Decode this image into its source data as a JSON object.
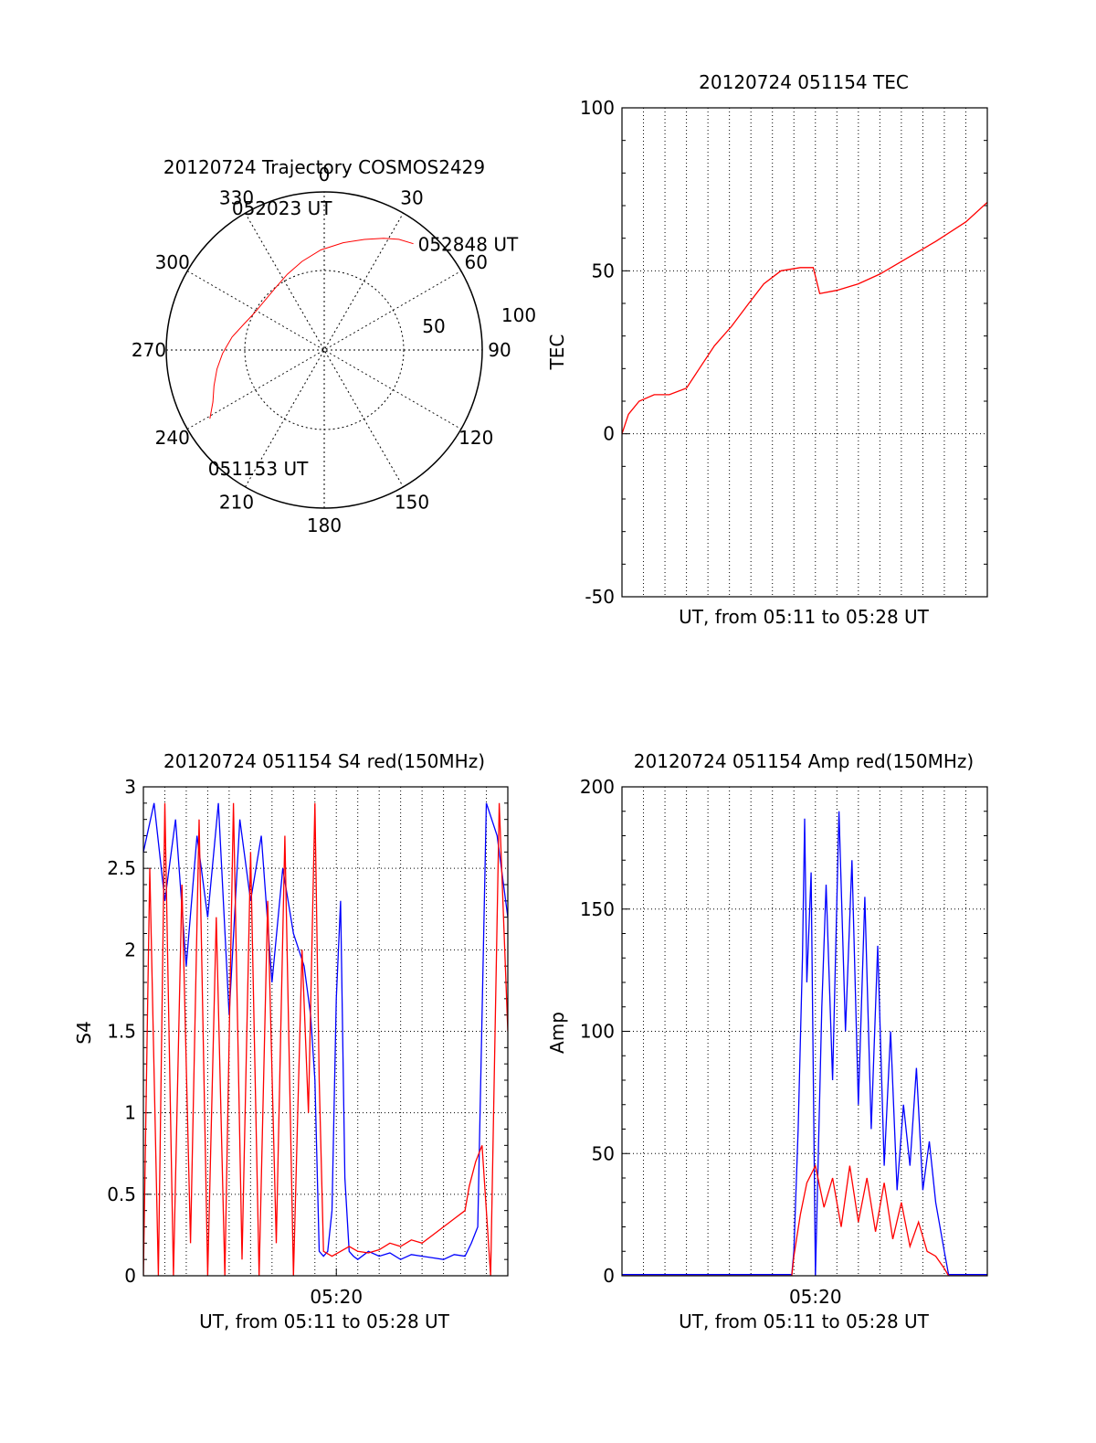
{
  "colors": {
    "red": "#ff0000",
    "blue": "#0000ff",
    "axis": "#000000",
    "grid": "#000000"
  },
  "chart_data": [
    {
      "type": "polar",
      "title": "20120724 Trajectory COSMOS2429",
      "azimuth_labels": [
        "0",
        "30",
        "60",
        "90",
        "120",
        "150",
        "180",
        "210",
        "240",
        "270",
        "300",
        "330"
      ],
      "radius_labels": [
        "50",
        "100"
      ],
      "track": {
        "azimuth_deg": [
          239,
          245,
          252,
          260,
          268,
          278,
          288,
          298,
          310,
          322,
          334,
          346,
          358,
          10,
          20,
          28,
          34,
          40
        ],
        "zenith_deg": [
          76,
          70,
          66,
          62,
          58,
          53,
          48,
          45,
          44,
          45,
          48,
          52,
          57,
          62,
          67,
          72,
          76,
          79
        ]
      },
      "annotations": [
        {
          "text": "052848 UT",
          "azimuth_deg": 40,
          "zenith_deg": 79
        },
        {
          "text": "052023 UT",
          "azimuth_deg": 330,
          "zenith_deg": 48
        },
        {
          "text": "051153 UT",
          "azimuth_deg": 239,
          "zenith_deg": 76
        }
      ]
    },
    {
      "type": "line",
      "title": "20120724 051154 TEC",
      "xlabel": "UT, from 05:11 to 05:28 UT",
      "ylabel": "TEC",
      "ylim": [
        -50,
        100
      ],
      "yticks": [
        "-50",
        "0",
        "50",
        "100"
      ],
      "xlim_min": [
        0,
        17
      ],
      "series": [
        {
          "color": "red",
          "x": [
            0,
            0.3,
            0.8,
            1.5,
            2.2,
            3.0,
            3.6,
            4.3,
            5.1,
            5.9,
            6.6,
            7.4,
            8.3,
            8.9,
            9.2,
            10.0,
            11.0,
            12.0,
            13.3,
            14.6,
            16.0,
            17.0
          ],
          "y": [
            0,
            6,
            10,
            12,
            12,
            14,
            20,
            27,
            33,
            40,
            46,
            50,
            51,
            51,
            43,
            44,
            46,
            49,
            54,
            59,
            65,
            71
          ]
        }
      ]
    },
    {
      "type": "line",
      "title": "20120724 051154 S4 red(150MHz)",
      "xlabel": "UT, from 05:11 to 05:28 UT",
      "ylabel": "S4",
      "ylim": [
        0,
        3
      ],
      "yticks": [
        "0",
        "0.5",
        "1",
        "1.5",
        "2",
        "2.5",
        "3"
      ],
      "xticks": [
        {
          "x": 9,
          "label": "05:20"
        }
      ],
      "xlim_min": [
        0,
        17
      ],
      "series": [
        {
          "color": "blue",
          "x": [
            0,
            0.5,
            1,
            1.5,
            2,
            2.5,
            3,
            3.5,
            4,
            4.5,
            5,
            5.5,
            6,
            6.5,
            7,
            7.5,
            7.8,
            8.0,
            8.2,
            8.4,
            8.6,
            8.8,
            9.0,
            9.2,
            9.4,
            9.6,
            9.8,
            10,
            10.5,
            11,
            11.5,
            12,
            12.5,
            13,
            13.5,
            14,
            14.5,
            15,
            15.3,
            15.6,
            16,
            16.5,
            17
          ],
          "y": [
            2.6,
            2.9,
            2.3,
            2.8,
            1.9,
            2.7,
            2.2,
            2.9,
            1.6,
            2.8,
            2.3,
            2.7,
            1.8,
            2.5,
            2.1,
            1.9,
            1.6,
            1.2,
            0.15,
            0.12,
            0.15,
            0.4,
            1.7,
            2.3,
            0.6,
            0.15,
            0.12,
            0.1,
            0.15,
            0.12,
            0.14,
            0.1,
            0.13,
            0.12,
            0.11,
            0.1,
            0.13,
            0.12,
            0.2,
            0.3,
            2.9,
            2.7,
            2.2
          ]
        },
        {
          "color": "red",
          "x": [
            0,
            0.3,
            0.7,
            1,
            1.4,
            1.8,
            2.2,
            2.6,
            3,
            3.4,
            3.8,
            4.2,
            4.6,
            5,
            5.4,
            5.8,
            6.2,
            6.6,
            7,
            7.4,
            7.7,
            8.0,
            8.2,
            8.4,
            8.8,
            9.2,
            9.6,
            10,
            10.5,
            11,
            11.5,
            12,
            12.5,
            13,
            13.5,
            14,
            14.5,
            15,
            15.2,
            15.5,
            15.8,
            16.2,
            16.6,
            17
          ],
          "y": [
            0,
            2.5,
            0,
            2.9,
            0,
            2.4,
            0.2,
            2.8,
            0,
            2.2,
            0,
            2.9,
            0.1,
            2.6,
            0,
            2.3,
            0.2,
            2.7,
            0,
            2.0,
            1.0,
            2.9,
            1.2,
            0.15,
            0.12,
            0.15,
            0.18,
            0.15,
            0.14,
            0.16,
            0.2,
            0.18,
            0.22,
            0.2,
            0.25,
            0.3,
            0.35,
            0.4,
            0.55,
            0.7,
            0.8,
            0,
            2.9,
            1.5
          ]
        }
      ]
    },
    {
      "type": "line",
      "title": "20120724 051154 Amp red(150MHz)",
      "xlabel": "UT, from 05:11 to 05:28 UT",
      "ylabel": "Amp",
      "ylim": [
        0,
        200
      ],
      "yticks": [
        "0",
        "50",
        "100",
        "150",
        "200"
      ],
      "xticks": [
        {
          "x": 9,
          "label": "05:20"
        }
      ],
      "xlim_min": [
        0,
        17
      ],
      "series": [
        {
          "color": "blue",
          "x": [
            0,
            7.9,
            8.0,
            8.2,
            8.4,
            8.5,
            8.6,
            8.8,
            9.0,
            9.3,
            9.5,
            9.8,
            10.1,
            10.4,
            10.7,
            11.0,
            11.3,
            11.6,
            11.9,
            12.2,
            12.5,
            12.8,
            13.1,
            13.4,
            13.7,
            14.0,
            14.3,
            14.6,
            15.0,
            15.2,
            15.5,
            17
          ],
          "y": [
            0.5,
            0.5,
            10,
            60,
            130,
            187,
            120,
            165,
            0,
            110,
            160,
            80,
            190,
            100,
            170,
            70,
            155,
            60,
            135,
            45,
            100,
            35,
            70,
            45,
            85,
            35,
            55,
            30,
            10,
            0.5,
            0.5,
            0.5
          ]
        },
        {
          "color": "red",
          "x": [
            0,
            7.9,
            8.0,
            8.3,
            8.6,
            9.0,
            9.4,
            9.8,
            10.2,
            10.6,
            11.0,
            11.4,
            11.8,
            12.2,
            12.6,
            13.0,
            13.4,
            13.8,
            14.2,
            14.6,
            15.0,
            15.2,
            17
          ],
          "y": [
            0,
            0,
            8,
            25,
            38,
            45,
            28,
            40,
            20,
            45,
            22,
            40,
            18,
            38,
            15,
            30,
            12,
            22,
            10,
            8,
            3,
            0,
            0
          ]
        }
      ]
    }
  ]
}
